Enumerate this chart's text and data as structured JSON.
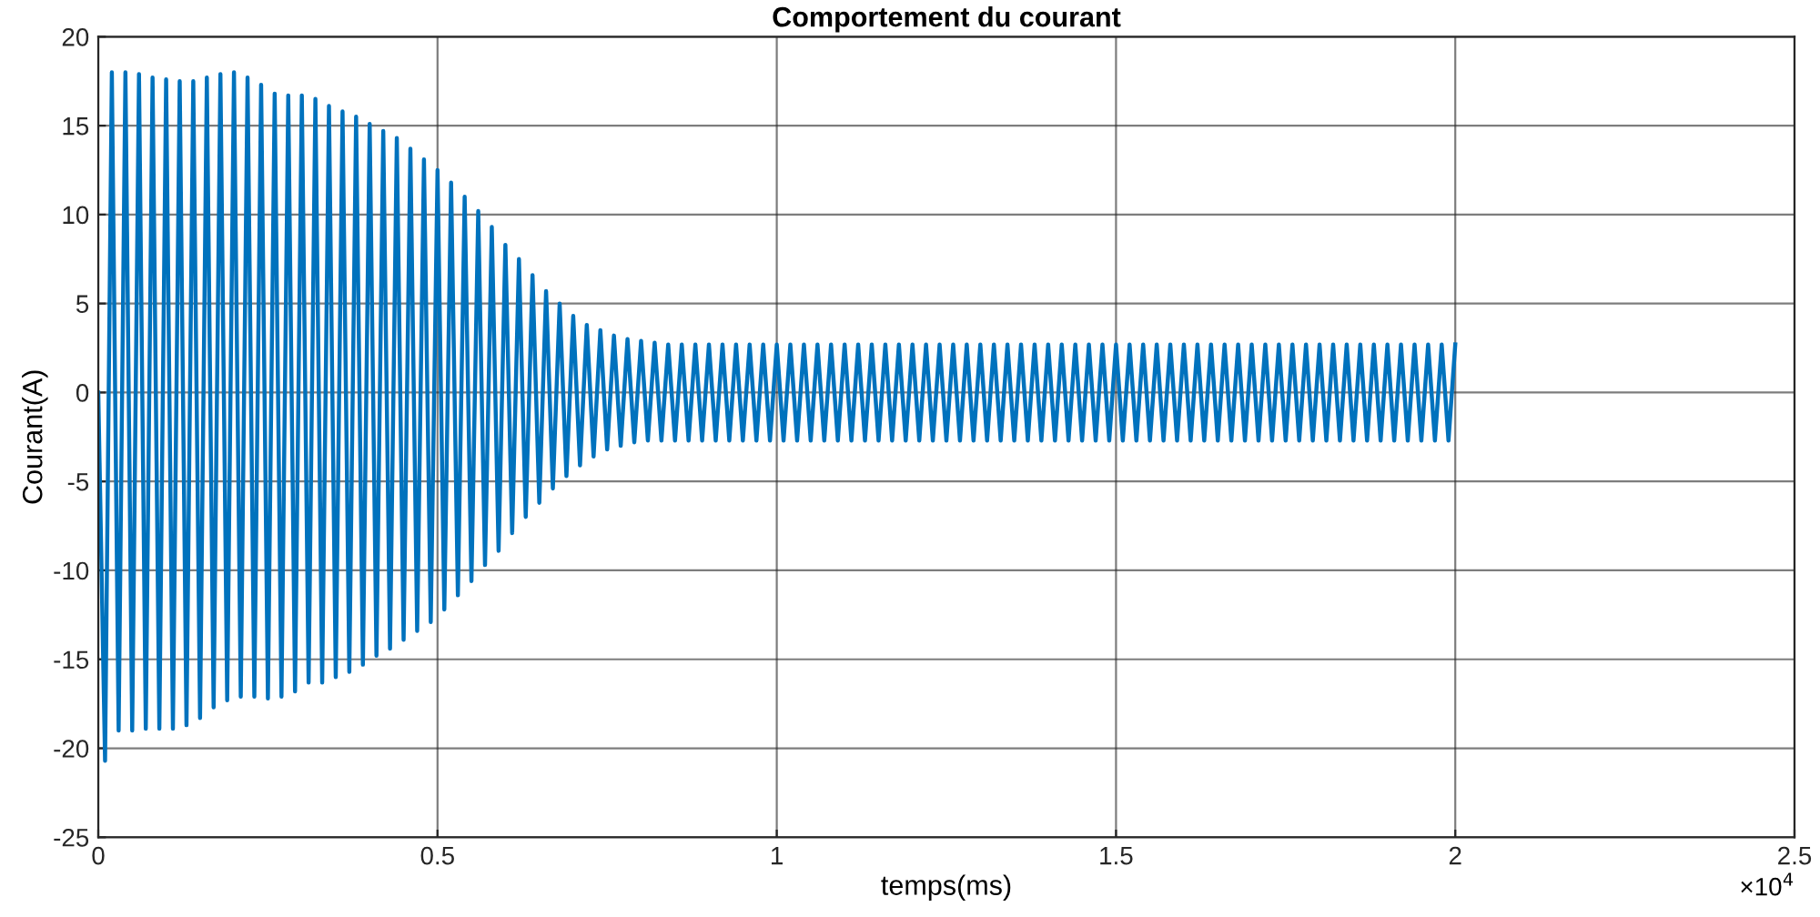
{
  "chart_data": {
    "type": "line",
    "title": "Comportement du courant",
    "xlabel": "temps(ms)",
    "ylabel": "Courant(A)",
    "annotations": [
      "×10$^{4}$"
    ],
    "x": [
      0,
      0.01,
      0.02,
      0.03,
      0.04,
      0.05,
      0.06,
      0.07,
      0.08,
      0.09,
      0.1,
      0.11,
      0.12,
      0.13,
      0.14,
      0.15,
      0.16,
      0.17,
      0.18,
      0.19,
      0.2,
      0.21,
      0.22,
      0.23,
      0.24,
      0.25,
      0.26,
      0.27,
      0.28,
      0.29,
      0.3,
      0.31,
      0.32,
      0.33,
      0.34,
      0.35,
      0.36,
      0.37,
      0.38,
      0.39,
      0.4,
      0.41,
      0.42,
      0.43,
      0.44,
      0.45,
      0.46,
      0.47,
      0.48,
      0.49,
      0.5,
      0.51,
      0.52,
      0.53,
      0.54,
      0.55,
      0.56,
      0.57,
      0.58,
      0.59,
      0.6,
      0.61,
      0.62,
      0.63,
      0.64,
      0.65,
      0.66,
      0.67,
      0.68,
      0.69,
      0.7,
      0.71,
      0.72,
      0.73,
      0.74,
      0.75,
      0.76,
      0.77,
      0.78,
      0.79,
      0.8,
      0.81,
      0.82,
      0.83,
      0.84,
      0.85,
      0.86,
      0.87,
      0.88,
      0.89,
      0.9,
      0.91,
      0.92,
      0.93,
      0.94,
      0.95,
      0.96,
      0.97,
      0.98,
      0.99,
      1.0,
      1.01,
      1.02,
      1.03,
      1.04,
      1.05,
      1.06,
      1.07,
      1.08,
      1.09,
      1.1,
      1.11,
      1.12,
      1.13,
      1.14,
      1.15,
      1.16,
      1.17,
      1.18,
      1.19,
      1.2,
      1.21,
      1.22,
      1.23,
      1.24,
      1.25,
      1.26,
      1.27,
      1.28,
      1.29,
      1.3,
      1.31,
      1.32,
      1.33,
      1.34,
      1.35,
      1.36,
      1.37,
      1.38,
      1.39,
      1.4,
      1.41,
      1.42,
      1.43,
      1.44,
      1.45,
      1.46,
      1.47,
      1.48,
      1.49,
      1.5,
      1.51,
      1.52,
      1.53,
      1.54,
      1.55,
      1.56,
      1.57,
      1.58,
      1.59,
      1.6,
      1.61,
      1.62,
      1.63,
      1.64,
      1.65,
      1.66,
      1.67,
      1.68,
      1.69,
      1.7,
      1.71,
      1.72,
      1.73,
      1.74,
      1.75,
      1.76,
      1.77,
      1.78,
      1.79,
      1.8,
      1.81,
      1.82,
      1.83,
      1.84,
      1.85,
      1.86,
      1.87,
      1.88,
      1.89,
      1.9,
      1.91,
      1.92,
      1.93,
      1.94,
      1.95,
      1.96,
      1.97,
      1.98,
      1.99,
      2.0
    ],
    "series": [
      {
        "color": "#0072bd",
        "values": [
          0,
          -20.7,
          18.0,
          -19.0,
          18.0,
          -19.0,
          17.9,
          -18.9,
          17.7,
          -18.9,
          17.6,
          -18.9,
          17.5,
          -18.7,
          17.5,
          -18.3,
          17.7,
          -17.7,
          17.9,
          -17.3,
          18.0,
          -17.1,
          17.7,
          -17.1,
          17.3,
          -17.2,
          16.8,
          -17.1,
          16.7,
          -16.8,
          16.7,
          -16.3,
          16.5,
          -16.3,
          16.1,
          -16.0,
          15.8,
          -15.7,
          15.5,
          -15.3,
          15.1,
          -14.8,
          14.7,
          -14.4,
          14.3,
          -13.9,
          13.7,
          -13.4,
          13.1,
          -12.9,
          12.5,
          -12.2,
          11.8,
          -11.4,
          11.0,
          -10.6,
          10.2,
          -9.7,
          9.3,
          -8.9,
          8.3,
          -7.9,
          7.5,
          -7.0,
          6.6,
          -6.2,
          5.7,
          -5.4,
          5.0,
          -4.7,
          4.3,
          -4.1,
          3.8,
          -3.6,
          3.5,
          -3.2,
          3.2,
          -3.0,
          3.0,
          -2.8,
          2.9,
          -2.7,
          2.8,
          -2.7,
          2.7,
          -2.7,
          2.7,
          -2.7,
          2.7,
          -2.7,
          2.7,
          -2.7,
          2.7,
          -2.7,
          2.7,
          -2.7,
          2.7,
          -2.7,
          2.7,
          -2.7,
          2.7,
          -2.7,
          2.7,
          -2.7,
          2.7,
          -2.7,
          2.7,
          -2.7,
          2.7,
          -2.7,
          2.7,
          -2.7,
          2.7,
          -2.7,
          2.7,
          -2.7,
          2.7,
          -2.7,
          2.7,
          -2.7,
          2.7,
          -2.7,
          2.7,
          -2.7,
          2.7,
          -2.7,
          2.7,
          -2.7,
          2.7,
          -2.7,
          2.7,
          -2.7,
          2.7,
          -2.7,
          2.7,
          -2.7,
          2.7,
          -2.7,
          2.7,
          -2.7,
          2.7,
          -2.7,
          2.7,
          -2.7,
          2.7,
          -2.7,
          2.7,
          -2.7,
          2.7,
          -2.7,
          2.7,
          -2.7,
          2.7,
          -2.7,
          2.7,
          -2.7,
          2.7,
          -2.7,
          2.7,
          -2.7,
          2.7,
          -2.7,
          2.7,
          -2.7,
          2.7,
          -2.7,
          2.7,
          -2.7,
          2.7,
          -2.7,
          2.7,
          -2.7,
          2.7,
          -2.7,
          2.7,
          -2.7,
          2.7,
          -2.7,
          2.7,
          -2.7,
          2.7,
          -2.7,
          2.7,
          -2.7,
          2.7,
          -2.7,
          2.7,
          -2.7,
          2.7,
          -2.7,
          2.7,
          -2.7,
          2.7,
          -2.7,
          2.7,
          -2.7,
          2.7,
          -2.7,
          2.7,
          -2.7,
          2.7
        ]
      }
    ],
    "xlim": [
      0,
      2.5
    ],
    "xticks": [
      0,
      0.5,
      1,
      1.5,
      2,
      2.5
    ],
    "ylim": [
      -25,
      20
    ],
    "yticks": [
      -25,
      -20,
      -15,
      -10,
      -5,
      0,
      5,
      10,
      15,
      20
    ],
    "grid": true,
    "legend": false,
    "marker": "none",
    "line_style": "solid"
  }
}
